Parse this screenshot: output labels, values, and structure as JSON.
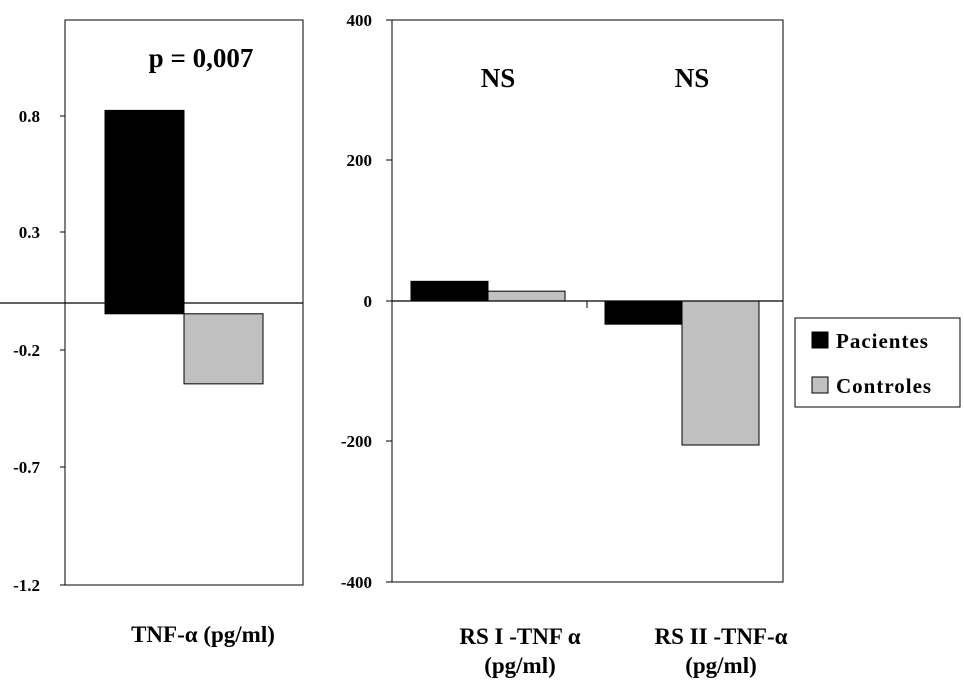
{
  "chart_data": [
    {
      "type": "bar",
      "ylim": [
        -1.2,
        1.3
      ],
      "yticks": [
        "0.8",
        "0.3",
        "-0.2",
        "-0.7",
        "-1.2"
      ],
      "categories": [
        "TNF-α (pg/ml)"
      ],
      "annotations": [
        "p = 0,007"
      ],
      "series": [
        {
          "name": "Pacientes",
          "values": [
            0.9
          ],
          "color": "#000000"
        },
        {
          "name": "Controles",
          "values": [
            -0.31
          ],
          "color": "#c0c0c0"
        }
      ]
    },
    {
      "type": "bar",
      "ylim": [
        -400,
        400
      ],
      "yticks": [
        "400",
        "200",
        "0",
        "-200",
        "-400"
      ],
      "categories": [
        [
          "RS I -TNF α",
          "(pg/ml)"
        ],
        [
          "RS II -TNF-α",
          "(pg/ml)"
        ]
      ],
      "annotations": [
        "NS",
        "NS"
      ],
      "series": [
        {
          "name": "Pacientes",
          "values": [
            28,
            -33
          ],
          "color": "#000000"
        },
        {
          "name": "Controles",
          "values": [
            14,
            -205
          ],
          "color": "#c0c0c0"
        }
      ]
    }
  ],
  "legend": {
    "position": "right",
    "items": [
      {
        "label": "Pacientes",
        "color": "#000000"
      },
      {
        "label": "Controles",
        "color": "#c0c0c0"
      }
    ]
  }
}
